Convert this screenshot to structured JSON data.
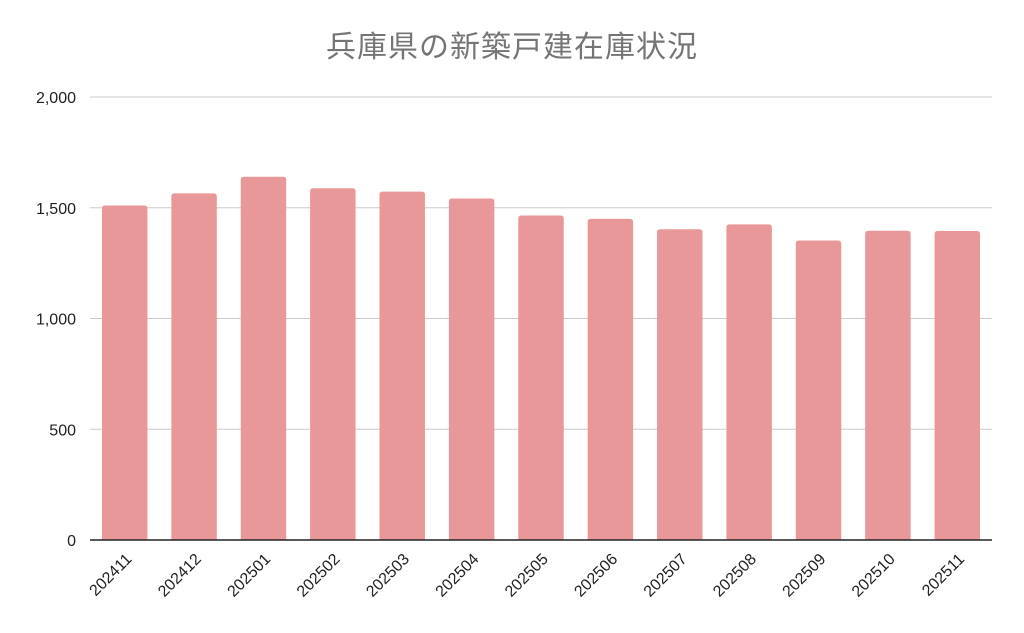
{
  "chart_data": {
    "type": "bar",
    "title": "兵庫県の新築戸建在庫状況",
    "xlabel": "",
    "ylabel": "",
    "categories": [
      "202411",
      "202412",
      "202501",
      "202502",
      "202503",
      "202504",
      "202505",
      "202506",
      "202507",
      "202508",
      "202509",
      "202510",
      "202511"
    ],
    "values": [
      1510,
      1565,
      1640,
      1588,
      1573,
      1542,
      1465,
      1450,
      1403,
      1425,
      1352,
      1396,
      1395
    ],
    "ylim": [
      0,
      2000
    ],
    "yticks": [
      "0",
      "500",
      "1,000",
      "1,500",
      "2,000"
    ],
    "ytick_values": [
      0,
      500,
      1000,
      1500,
      2000
    ],
    "grid": true,
    "legend": "none",
    "colors": {
      "bar": "#e89898",
      "grid": "#cccccc",
      "axis": "#222222",
      "title": "#757575"
    }
  }
}
